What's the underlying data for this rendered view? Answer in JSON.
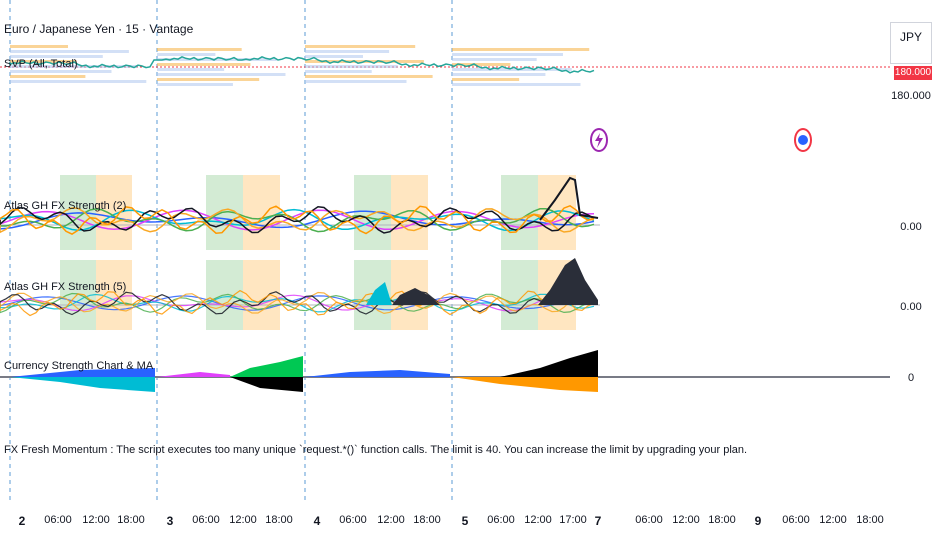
{
  "window": {
    "symbol_title": "Euro / Japanese Yen · 15 · Vantage",
    "currency": "JPY"
  },
  "indicators": {
    "svp": "SVP (All, Total)",
    "strength_2": "Atlas GH FX Strength (2)",
    "strength_5": "Atlas GH FX Strength (5)",
    "currency_strength": "Currency Strength Chart & MA",
    "error_message": "FX Fresh Momentum : The script executes too many unique `request.*()` function calls. The limit is 40. You can increase the limit by upgrading your plan."
  },
  "price_scale": {
    "current_price": "180.000",
    "level_label": "180.000",
    "strength_2_zero": "0.00",
    "strength_5_zero": "0.00",
    "currency_zero": "0"
  },
  "time_axis": [
    {
      "label": "2",
      "day": true
    },
    {
      "label": "06:00",
      "day": false
    },
    {
      "label": "12:00",
      "day": false
    },
    {
      "label": "18:00",
      "day": false
    },
    {
      "label": "3",
      "day": true
    },
    {
      "label": "06:00",
      "day": false
    },
    {
      "label": "12:00",
      "day": false
    },
    {
      "label": "18:00",
      "day": false
    },
    {
      "label": "4",
      "day": true
    },
    {
      "label": "06:00",
      "day": false
    },
    {
      "label": "12:00",
      "day": false
    },
    {
      "label": "18:00",
      "day": false
    },
    {
      "label": "5",
      "day": true
    },
    {
      "label": "06:00",
      "day": false
    },
    {
      "label": "12:00",
      "day": false
    },
    {
      "label": "17:00",
      "day": false
    },
    {
      "label": "7",
      "day": true
    },
    {
      "label": "06:00",
      "day": false
    },
    {
      "label": "12:00",
      "day": false
    },
    {
      "label": "18:00",
      "day": false
    },
    {
      "label": "9",
      "day": true
    },
    {
      "label": "06:00",
      "day": false
    },
    {
      "label": "12:00",
      "day": false
    },
    {
      "label": "18:00",
      "day": false
    }
  ],
  "colors": {
    "session_green": "#c8e6c9",
    "session_orange": "#ffe0b2",
    "price_line": "#f23645",
    "separator": "#5b9bd5",
    "zero_line": "#787b86"
  },
  "icons": {
    "lightning": "lightning-bolt-icon",
    "earnings": "event-marker-icon"
  }
}
